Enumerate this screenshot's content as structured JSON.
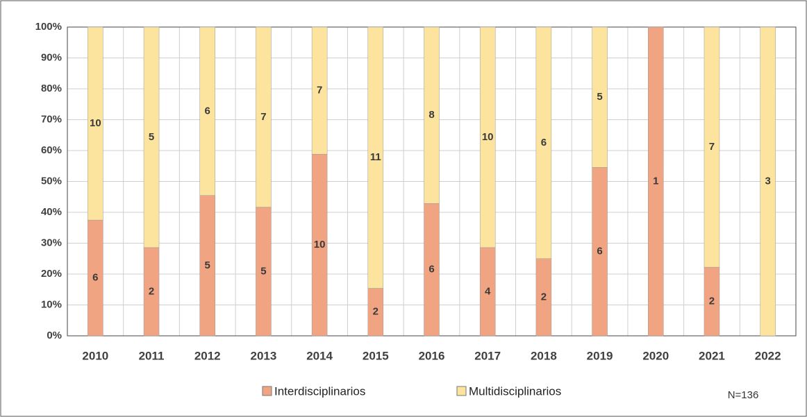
{
  "chart_data": {
    "type": "bar",
    "stacking": "percent",
    "categories": [
      "2010",
      "2011",
      "2012",
      "2013",
      "2014",
      "2015",
      "2016",
      "2017",
      "2018",
      "2019",
      "2020",
      "2021",
      "2022"
    ],
    "series": [
      {
        "name": "Interdisciplinarios",
        "color": "#f1a482",
        "values": [
          6,
          2,
          5,
          5,
          10,
          2,
          6,
          4,
          2,
          6,
          1,
          2,
          0
        ]
      },
      {
        "name": "Multidisciplinarios",
        "color": "#fce39e",
        "values": [
          10,
          5,
          6,
          7,
          7,
          11,
          8,
          10,
          6,
          5,
          0,
          7,
          3
        ]
      }
    ],
    "ylim": [
      0,
      100
    ],
    "yticks": [
      {
        "value": 0,
        "label": "0%"
      },
      {
        "value": 10,
        "label": "10%"
      },
      {
        "value": 20,
        "label": "20%"
      },
      {
        "value": 30,
        "label": "30%"
      },
      {
        "value": 40,
        "label": "40%"
      },
      {
        "value": 50,
        "label": "50%"
      },
      {
        "value": 60,
        "label": "60%"
      },
      {
        "value": 70,
        "label": "70%"
      },
      {
        "value": 80,
        "label": "80%"
      },
      {
        "value": 90,
        "label": "90%"
      },
      {
        "value": 100,
        "label": "100%"
      }
    ],
    "grid": true,
    "legend": "bottom",
    "annotation": "N=136"
  }
}
